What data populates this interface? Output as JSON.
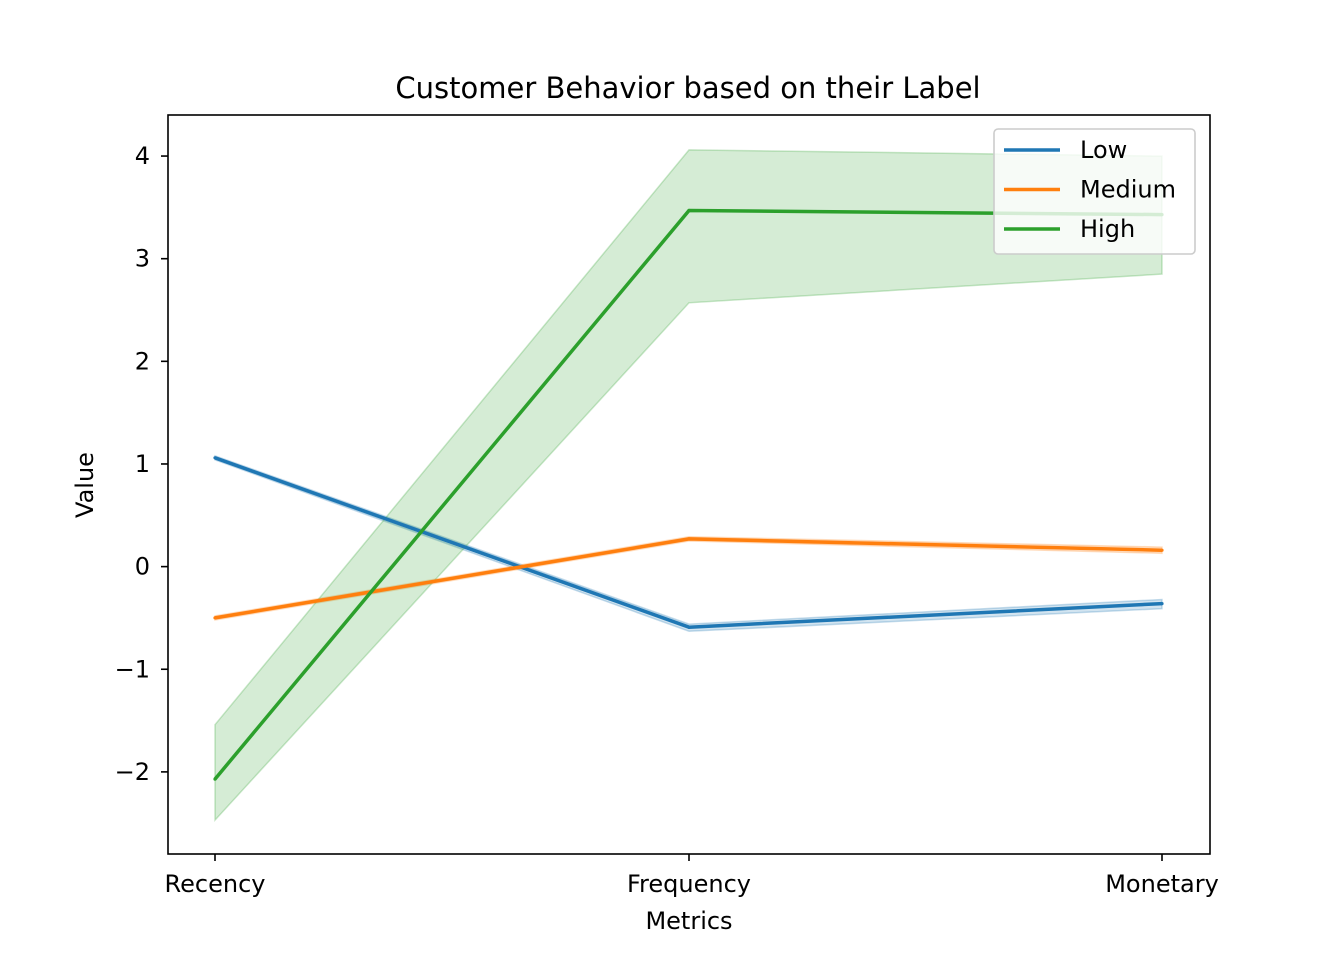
{
  "chart_data": {
    "type": "line",
    "title": "Customer Behavior based on their Label",
    "xlabel": "Metrics",
    "ylabel": "Value",
    "categories": [
      "Recency",
      "Frequency",
      "Monetary"
    ],
    "ylim": [
      -2.8,
      4.4
    ],
    "yticks": [
      -2,
      -1,
      0,
      1,
      2,
      3,
      4
    ],
    "ytick_labels": [
      "−2",
      "−1",
      "0",
      "1",
      "2",
      "3",
      "4"
    ],
    "grid": false,
    "legend_position": "top-right",
    "series": [
      {
        "name": "Low",
        "color": "#1f77b4",
        "values": [
          1.06,
          -0.59,
          -0.36
        ],
        "ci_lower": [
          1.04,
          -0.63,
          -0.41
        ],
        "ci_upper": [
          1.08,
          -0.56,
          -0.32
        ]
      },
      {
        "name": "Medium",
        "color": "#ff7f0e",
        "values": [
          -0.5,
          0.27,
          0.16
        ],
        "ci_lower": [
          -0.52,
          0.25,
          0.13
        ],
        "ci_upper": [
          -0.48,
          0.29,
          0.19
        ]
      },
      {
        "name": "High",
        "color": "#2ca02c",
        "values": [
          -2.07,
          3.47,
          3.43
        ],
        "ci_lower": [
          -2.47,
          2.57,
          2.85
        ],
        "ci_upper": [
          -1.54,
          4.06,
          4.0
        ]
      }
    ]
  }
}
